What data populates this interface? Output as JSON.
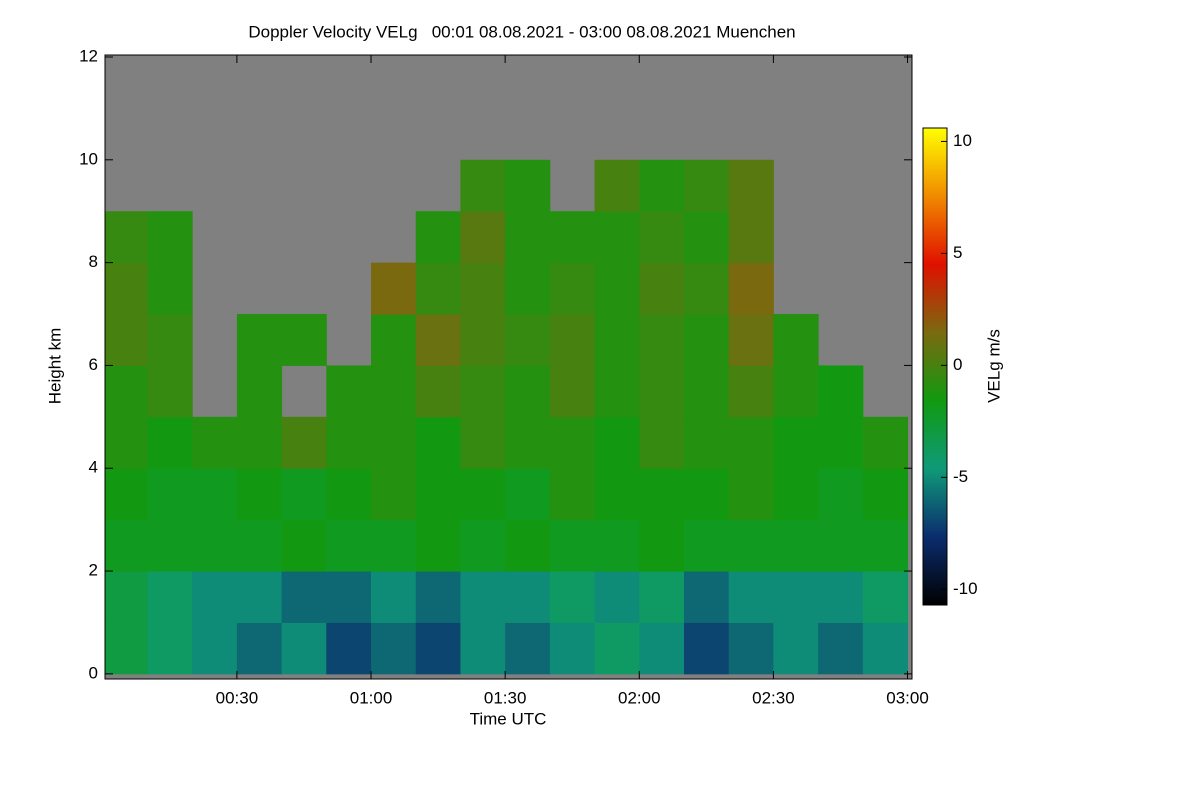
{
  "chart_data": {
    "type": "heatmap",
    "title": "Doppler Velocity VELg   00:01 08.08.2021 - 03:00 08.08.2021 Muenchen",
    "x_label": "Time UTC",
    "y_label": "Height km",
    "colorbar_label": "VELg m/s",
    "x": [
      5,
      15,
      25,
      35,
      45,
      55,
      65,
      75,
      85,
      95,
      105,
      115,
      125,
      135,
      145,
      155,
      165,
      175
    ],
    "y": [
      0.5,
      1.5,
      2.5,
      3.5,
      4.5,
      5.5,
      6.5,
      7.5,
      8.5,
      9.5,
      10.5,
      11.5
    ],
    "z": [
      [
        -3,
        -4,
        -5,
        -6,
        -5,
        -7,
        -6,
        -7,
        -5,
        -6,
        -5,
        -4,
        -5,
        -7,
        -6,
        -5,
        -6,
        -5
      ],
      [
        -3,
        -4,
        -5,
        -5,
        -6,
        -6,
        -5,
        -6,
        -5,
        -5,
        -4,
        -5,
        -4,
        -6,
        -5,
        -5,
        -5,
        -4
      ],
      [
        -2,
        -2,
        -2,
        -2,
        -1.5,
        -2,
        -2,
        -1.5,
        -2,
        -1.5,
        -2,
        -2,
        -1.5,
        -2,
        -2,
        -2,
        -2,
        -2
      ],
      [
        -1.5,
        -2,
        -2,
        -1.5,
        -2,
        -1.5,
        -1,
        -1.5,
        -1.5,
        -2,
        -1,
        -1.5,
        -1.5,
        -1.5,
        -1,
        -1.5,
        -2,
        -1.5
      ],
      [
        -1,
        -1.5,
        -1,
        -1,
        0,
        -1,
        -1,
        -1.5,
        -0.5,
        -1,
        -1,
        -1.5,
        -0.5,
        -1,
        -1,
        -1.5,
        -1.5,
        -1
      ],
      [
        -1,
        -0.5,
        null,
        -1,
        null,
        -1,
        -1,
        0,
        -0.5,
        -1,
        0,
        -1,
        -0.5,
        -1,
        0,
        -1,
        -1.5,
        null
      ],
      [
        0,
        -0.5,
        null,
        -1,
        -1,
        null,
        -1,
        1,
        0,
        -0.5,
        0,
        -1,
        -0.5,
        -1,
        1,
        -1,
        null,
        null
      ],
      [
        0,
        -1,
        null,
        null,
        null,
        null,
        1.5,
        -0.5,
        0,
        -1,
        -0.5,
        -1,
        0,
        -0.5,
        1.5,
        null,
        null,
        null
      ],
      [
        -0.5,
        -1,
        null,
        null,
        null,
        null,
        null,
        -1,
        0.5,
        -1,
        -1,
        -1,
        -0.5,
        -1,
        0.5,
        null,
        null,
        null
      ],
      [
        null,
        null,
        null,
        null,
        null,
        null,
        null,
        null,
        -0.5,
        -1,
        null,
        0,
        -1,
        -0.5,
        0.5,
        null,
        null,
        null
      ],
      [
        null,
        null,
        null,
        null,
        null,
        null,
        null,
        null,
        null,
        null,
        null,
        null,
        null,
        null,
        null,
        null,
        null,
        null
      ],
      [
        null,
        null,
        null,
        null,
        null,
        null,
        null,
        null,
        null,
        null,
        null,
        null,
        null,
        null,
        null,
        null,
        null,
        null
      ]
    ],
    "xlim": [
      0.5,
      181
    ],
    "ylim": [
      -0.1,
      12
    ],
    "zlim": [
      -10.7,
      10.6
    ],
    "xticks": [
      {
        "value": 30,
        "label": "00:30"
      },
      {
        "value": 60,
        "label": "01:00"
      },
      {
        "value": 90,
        "label": "01:30"
      },
      {
        "value": 120,
        "label": "02:00"
      },
      {
        "value": 150,
        "label": "02:30"
      },
      {
        "value": 180,
        "label": "03:00"
      }
    ],
    "yticks": [
      0,
      2,
      4,
      6,
      8,
      10,
      12
    ],
    "zticks": [
      -10,
      -5,
      0,
      5,
      10
    ],
    "background_color": "#808080"
  }
}
